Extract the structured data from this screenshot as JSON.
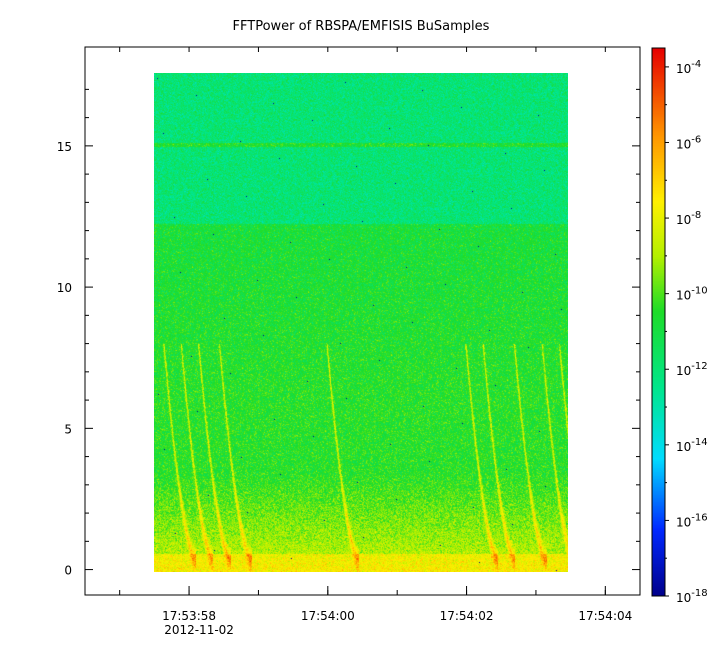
{
  "chart_data": {
    "type": "heatmap",
    "title": "FFTPower of RBSPA/EMFISIS  BuSamples",
    "xlabel": "",
    "ylabel": "",
    "x_ticks": [
      {
        "t": 57.5,
        "label": "17:53:58",
        "sublabel": "2012-11-02"
      },
      {
        "t": 59.5,
        "label": "17:54:00",
        "sublabel": ""
      },
      {
        "t": 61.5,
        "label": "17:54:02",
        "sublabel": ""
      },
      {
        "t": 63.5,
        "label": "17:54:04",
        "sublabel": ""
      }
    ],
    "x_minor_ticks": [
      56.5,
      57.5,
      58.5,
      59.5,
      60.5,
      61.5,
      62.5,
      63.5
    ],
    "xlim": [
      56.0,
      64.0
    ],
    "data_x_range": [
      56.9,
      62.85
    ],
    "y_ticks": [
      0,
      5,
      10,
      15
    ],
    "ylim": [
      -0.9,
      18.5
    ],
    "data_y_range": [
      0,
      17.5
    ],
    "colorbar": {
      "scale": "log",
      "range_exponent": [
        -18,
        -3.5
      ],
      "tick_exponents": [
        -4,
        -6,
        -8,
        -10,
        -12,
        -14,
        -16,
        -18
      ],
      "tick_labels": [
        "10",
        "10",
        "10",
        "10",
        "10",
        "10",
        "10",
        "10"
      ],
      "tick_superscripts": [
        "-4",
        "-6",
        "-8",
        "-10",
        "-12",
        "-14",
        "-16",
        "-18"
      ]
    },
    "features": {
      "background_level_upper": -12,
      "background_level_lower": -10.5,
      "transition_freq": 12.2,
      "horizontal_line_freq": 15.0,
      "low_freq_enhancement_top": 3.5,
      "chorus_bursts_t": [
        57.05,
        57.3,
        57.55,
        57.85,
        59.4,
        61.4,
        61.65,
        62.1,
        62.5,
        62.75
      ]
    },
    "grid": false,
    "legend": "colorbar-right"
  }
}
